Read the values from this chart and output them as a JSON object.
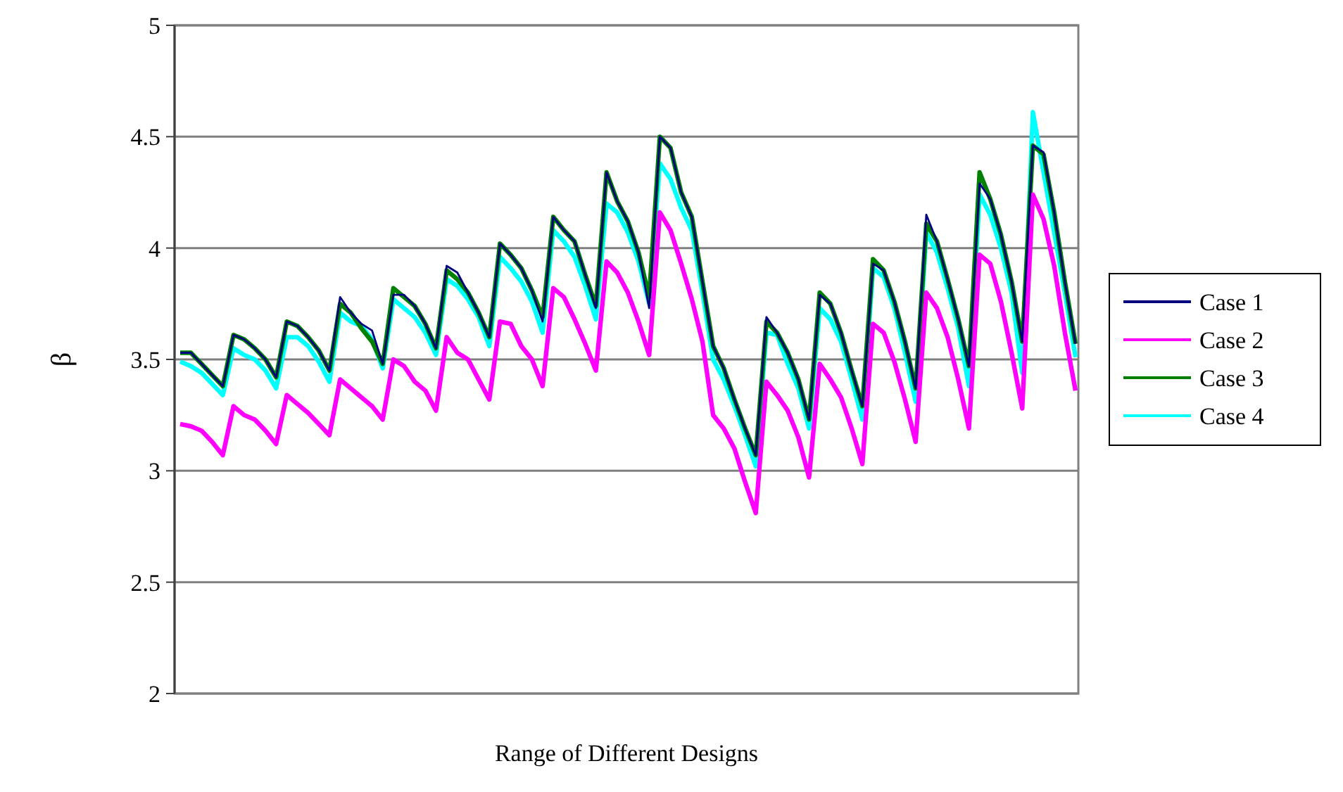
{
  "chart_data": {
    "type": "line",
    "xlabel": "Range of Different Designs",
    "ylabel": "β",
    "categories": [
      null,
      null,
      null,
      null,
      null,
      null,
      null,
      null,
      null,
      null,
      null,
      null,
      null,
      null,
      null,
      null,
      null,
      null,
      null,
      null,
      null,
      null,
      null,
      null,
      null,
      null,
      null,
      null,
      null,
      null,
      null,
      null,
      null,
      null,
      null,
      null,
      null,
      null,
      null,
      null,
      null,
      null,
      null,
      null,
      null,
      null,
      null,
      null,
      null,
      null,
      null,
      null,
      null,
      null,
      null,
      null,
      null,
      null,
      null,
      null,
      null,
      null,
      null,
      null,
      null,
      null,
      null,
      null,
      null,
      null,
      null,
      null,
      null,
      null,
      null,
      null,
      null,
      null,
      null,
      null,
      null,
      null,
      null,
      null,
      null
    ],
    "ylim": [
      2,
      5
    ],
    "yticks": [
      2,
      2.5,
      3,
      3.5,
      4,
      4.5,
      5
    ],
    "grid": "y",
    "legend": "right",
    "marker": "none",
    "line_style": "solid",
    "series": [
      {
        "name": "Case 1",
        "color": "#000080",
        "values": [
          3.53,
          3.53,
          3.48,
          3.43,
          3.38,
          3.61,
          3.59,
          3.55,
          3.5,
          3.42,
          3.67,
          3.65,
          3.6,
          3.54,
          3.45,
          3.78,
          3.71,
          3.66,
          3.63,
          3.48,
          3.79,
          3.79,
          3.74,
          3.66,
          3.55,
          3.92,
          3.89,
          3.8,
          3.71,
          3.6,
          4.02,
          3.97,
          3.91,
          3.81,
          3.67,
          4.14,
          4.08,
          4.03,
          3.88,
          3.73,
          4.34,
          4.21,
          4.12,
          3.98,
          3.73,
          4.5,
          4.45,
          4.25,
          4.14,
          3.85,
          3.56,
          3.46,
          3.32,
          3.19,
          3.07,
          3.69,
          3.62,
          3.53,
          3.41,
          3.23,
          3.79,
          3.75,
          3.62,
          3.45,
          3.29,
          3.93,
          3.9,
          3.76,
          3.58,
          3.37,
          4.15,
          4.03,
          3.86,
          3.68,
          3.47,
          4.29,
          4.22,
          4.06,
          3.85,
          3.58,
          4.46,
          4.43,
          4.16,
          3.85,
          3.57
        ]
      },
      {
        "name": "Case 2",
        "color": "#ff00ff",
        "values": [
          3.21,
          3.2,
          3.18,
          3.13,
          3.07,
          3.29,
          3.25,
          3.23,
          3.18,
          3.12,
          3.34,
          3.3,
          3.26,
          3.21,
          3.16,
          3.41,
          3.37,
          3.33,
          3.29,
          3.23,
          3.5,
          3.47,
          3.4,
          3.36,
          3.27,
          3.6,
          3.53,
          3.5,
          3.41,
          3.32,
          3.67,
          3.66,
          3.56,
          3.5,
          3.38,
          3.82,
          3.78,
          3.68,
          3.57,
          3.45,
          3.94,
          3.89,
          3.8,
          3.67,
          3.52,
          4.16,
          4.08,
          3.93,
          3.77,
          3.58,
          3.25,
          3.19,
          3.1,
          2.95,
          2.81,
          3.4,
          3.34,
          3.27,
          3.15,
          2.97,
          3.48,
          3.41,
          3.33,
          3.19,
          3.03,
          3.66,
          3.62,
          3.49,
          3.32,
          3.13,
          3.8,
          3.73,
          3.6,
          3.41,
          3.19,
          3.97,
          3.93,
          3.76,
          3.53,
          3.28,
          4.24,
          4.13,
          3.92,
          3.62,
          3.36
        ]
      },
      {
        "name": "Case 3",
        "color": "#008000",
        "values": [
          3.53,
          3.53,
          3.48,
          3.43,
          3.38,
          3.61,
          3.59,
          3.55,
          3.5,
          3.42,
          3.67,
          3.65,
          3.6,
          3.54,
          3.45,
          3.75,
          3.71,
          3.64,
          3.58,
          3.48,
          3.82,
          3.78,
          3.74,
          3.66,
          3.55,
          3.9,
          3.86,
          3.8,
          3.71,
          3.6,
          4.02,
          3.97,
          3.91,
          3.81,
          3.69,
          4.14,
          4.08,
          4.03,
          3.88,
          3.74,
          4.34,
          4.21,
          4.12,
          3.98,
          3.78,
          4.5,
          4.45,
          4.25,
          4.14,
          3.85,
          3.56,
          3.46,
          3.32,
          3.19,
          3.07,
          3.67,
          3.62,
          3.53,
          3.41,
          3.23,
          3.8,
          3.75,
          3.62,
          3.45,
          3.29,
          3.95,
          3.9,
          3.76,
          3.58,
          3.37,
          4.11,
          4.03,
          3.86,
          3.68,
          3.47,
          4.34,
          4.22,
          4.06,
          3.85,
          3.58,
          4.46,
          4.42,
          4.16,
          3.85,
          3.57
        ]
      },
      {
        "name": "Case 4",
        "color": "#00ffff",
        "values": [
          3.49,
          3.47,
          3.44,
          3.39,
          3.34,
          3.55,
          3.52,
          3.5,
          3.45,
          3.37,
          3.6,
          3.6,
          3.56,
          3.49,
          3.4,
          3.71,
          3.67,
          3.65,
          3.59,
          3.46,
          3.77,
          3.73,
          3.69,
          3.62,
          3.52,
          3.86,
          3.83,
          3.77,
          3.69,
          3.56,
          3.96,
          3.91,
          3.85,
          3.76,
          3.62,
          4.08,
          4.03,
          3.96,
          3.83,
          3.68,
          4.2,
          4.16,
          4.07,
          3.94,
          3.75,
          4.38,
          4.31,
          4.18,
          4.08,
          3.8,
          3.5,
          3.41,
          3.29,
          3.16,
          3.02,
          3.62,
          3.61,
          3.48,
          3.37,
          3.19,
          3.73,
          3.68,
          3.58,
          3.41,
          3.23,
          3.91,
          3.87,
          3.73,
          3.53,
          3.31,
          4.07,
          3.98,
          3.82,
          3.64,
          3.38,
          4.24,
          4.15,
          4.0,
          3.8,
          3.44,
          4.61,
          4.34,
          4.07,
          3.8,
          3.51
        ]
      }
    ]
  }
}
